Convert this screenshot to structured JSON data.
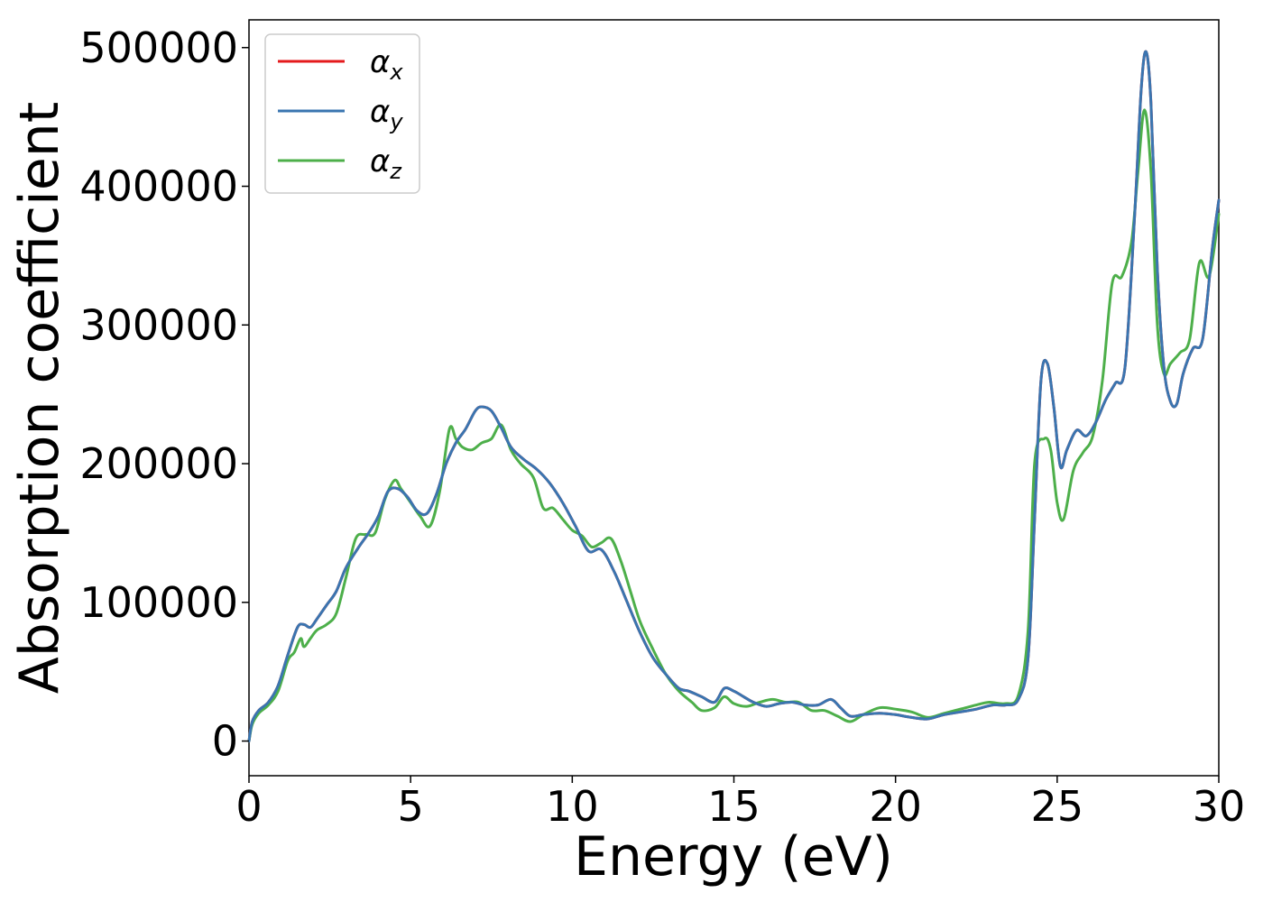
{
  "chart_data": {
    "type": "line",
    "title": "",
    "xlabel": "Energy (eV)",
    "ylabel": "Absorption coefficient",
    "xlim": [
      0,
      30
    ],
    "ylim": [
      -25000,
      520000
    ],
    "xticks": [
      0,
      5,
      10,
      15,
      20,
      25,
      30
    ],
    "yticks": [
      0,
      100000,
      200000,
      300000,
      400000,
      500000
    ],
    "xtick_labels": [
      "0",
      "5",
      "10",
      "15",
      "20",
      "25",
      "30"
    ],
    "ytick_labels": [
      "0",
      "100000",
      "200000",
      "300000",
      "400000",
      "500000"
    ],
    "grid": false,
    "legend_position": "top-left",
    "series": [
      {
        "name": "αx",
        "symbol": "α",
        "subscript": "x",
        "color": "#e41a1c",
        "x": [
          0,
          0.1,
          0.3,
          0.6,
          0.9,
          1.2,
          1.5,
          1.7,
          1.9,
          2.1,
          2.4,
          2.7,
          3.0,
          3.4,
          3.7,
          4.0,
          4.3,
          4.6,
          4.9,
          5.2,
          5.5,
          5.8,
          6.1,
          6.4,
          6.7,
          7.0,
          7.2,
          7.5,
          7.8,
          8.1,
          8.5,
          8.9,
          9.3,
          9.7,
          10.1,
          10.5,
          10.9,
          11.3,
          11.7,
          12.1,
          12.5,
          12.9,
          13.3,
          13.6,
          14.0,
          14.4,
          14.7,
          15.0,
          15.3,
          15.6,
          16.0,
          16.4,
          16.8,
          17.2,
          17.6,
          18.0,
          18.3,
          18.6,
          19.0,
          19.5,
          20.0,
          20.5,
          21.0,
          21.5,
          22.0,
          22.5,
          23.0,
          23.4,
          23.8,
          24.1,
          24.3,
          24.5,
          24.7,
          24.9,
          25.1,
          25.3,
          25.6,
          25.9,
          26.2,
          26.5,
          26.8,
          27.1,
          27.4,
          27.6,
          27.75,
          27.9,
          28.1,
          28.3,
          28.5,
          28.7,
          28.9,
          29.2,
          29.5,
          29.8,
          30.0
        ],
        "values": [
          0,
          14000,
          22000,
          28000,
          40000,
          62000,
          82000,
          84000,
          82000,
          88000,
          98000,
          108000,
          125000,
          140000,
          150000,
          162000,
          180000,
          182000,
          176000,
          166000,
          164000,
          178000,
          200000,
          215000,
          225000,
          238000,
          241000,
          238000,
          226000,
          212000,
          203000,
          196000,
          186000,
          172000,
          155000,
          137000,
          138000,
          122000,
          100000,
          78000,
          60000,
          48000,
          38000,
          36000,
          32000,
          28000,
          38000,
          36000,
          32000,
          28000,
          25000,
          27000,
          28000,
          26000,
          26000,
          30000,
          24000,
          18000,
          19000,
          20000,
          19000,
          17000,
          16000,
          19000,
          21000,
          23000,
          26000,
          26000,
          30000,
          60000,
          160000,
          260000,
          272000,
          240000,
          198000,
          210000,
          224000,
          220000,
          230000,
          246000,
          258000,
          270000,
          380000,
          470000,
          497000,
          460000,
          340000,
          270000,
          245000,
          243000,
          265000,
          283000,
          290000,
          355000,
          390000
        ]
      },
      {
        "name": "αy",
        "symbol": "α",
        "subscript": "y",
        "color": "#3a75b0",
        "x": [
          0,
          0.1,
          0.3,
          0.6,
          0.9,
          1.2,
          1.5,
          1.7,
          1.9,
          2.1,
          2.4,
          2.7,
          3.0,
          3.4,
          3.7,
          4.0,
          4.3,
          4.6,
          4.9,
          5.2,
          5.5,
          5.8,
          6.1,
          6.4,
          6.7,
          7.0,
          7.2,
          7.5,
          7.8,
          8.1,
          8.5,
          8.9,
          9.3,
          9.7,
          10.1,
          10.5,
          10.9,
          11.3,
          11.7,
          12.1,
          12.5,
          12.9,
          13.3,
          13.6,
          14.0,
          14.4,
          14.7,
          15.0,
          15.3,
          15.6,
          16.0,
          16.4,
          16.8,
          17.2,
          17.6,
          18.0,
          18.3,
          18.6,
          19.0,
          19.5,
          20.0,
          20.5,
          21.0,
          21.5,
          22.0,
          22.5,
          23.0,
          23.4,
          23.8,
          24.1,
          24.3,
          24.5,
          24.7,
          24.9,
          25.1,
          25.3,
          25.6,
          25.9,
          26.2,
          26.5,
          26.8,
          27.1,
          27.4,
          27.6,
          27.75,
          27.9,
          28.1,
          28.3,
          28.5,
          28.7,
          28.9,
          29.2,
          29.5,
          29.8,
          30.0
        ],
        "values": [
          0,
          14000,
          22000,
          28000,
          40000,
          62000,
          82000,
          84000,
          82000,
          88000,
          98000,
          108000,
          125000,
          140000,
          150000,
          162000,
          180000,
          182000,
          176000,
          166000,
          164000,
          178000,
          200000,
          215000,
          225000,
          238000,
          241000,
          238000,
          226000,
          212000,
          203000,
          196000,
          186000,
          172000,
          155000,
          137000,
          138000,
          122000,
          100000,
          78000,
          60000,
          48000,
          38000,
          36000,
          32000,
          28000,
          38000,
          36000,
          32000,
          28000,
          25000,
          27000,
          28000,
          26000,
          26000,
          30000,
          24000,
          18000,
          19000,
          20000,
          19000,
          17000,
          16000,
          19000,
          21000,
          23000,
          26000,
          26000,
          30000,
          60000,
          160000,
          260000,
          272000,
          240000,
          198000,
          210000,
          224000,
          220000,
          230000,
          246000,
          258000,
          270000,
          380000,
          470000,
          497000,
          460000,
          340000,
          270000,
          245000,
          243000,
          265000,
          283000,
          290000,
          355000,
          390000
        ]
      },
      {
        "name": "αz",
        "symbol": "α",
        "subscript": "z",
        "color": "#4daf4a",
        "x": [
          0,
          0.1,
          0.3,
          0.6,
          0.9,
          1.2,
          1.4,
          1.6,
          1.7,
          1.9,
          2.1,
          2.4,
          2.7,
          3.0,
          3.3,
          3.6,
          3.9,
          4.2,
          4.5,
          4.7,
          5.0,
          5.3,
          5.6,
          5.9,
          6.2,
          6.4,
          6.6,
          6.9,
          7.2,
          7.5,
          7.8,
          8.1,
          8.4,
          8.8,
          9.1,
          9.4,
          9.7,
          10.0,
          10.3,
          10.6,
          10.9,
          11.2,
          11.5,
          11.8,
          12.1,
          12.5,
          12.9,
          13.3,
          13.7,
          14.0,
          14.4,
          14.7,
          15.0,
          15.4,
          15.8,
          16.2,
          16.6,
          17.0,
          17.4,
          17.8,
          18.2,
          18.6,
          19.0,
          19.5,
          20.0,
          20.5,
          21.0,
          21.5,
          22.0,
          22.5,
          22.9,
          23.4,
          23.8,
          24.1,
          24.3,
          24.6,
          24.8,
          25.0,
          25.2,
          25.5,
          25.8,
          26.1,
          26.4,
          26.7,
          27.0,
          27.3,
          27.5,
          27.7,
          27.9,
          28.1,
          28.3,
          28.5,
          28.8,
          29.1,
          29.4,
          29.7,
          30.0
        ],
        "values": [
          0,
          12000,
          20000,
          26000,
          36000,
          58000,
          64000,
          74000,
          68000,
          74000,
          80000,
          84000,
          92000,
          118000,
          146000,
          149000,
          150000,
          174000,
          188000,
          182000,
          172000,
          162000,
          155000,
          180000,
          225000,
          218000,
          212000,
          210000,
          215000,
          218000,
          228000,
          210000,
          200000,
          190000,
          168000,
          168000,
          160000,
          152000,
          148000,
          140000,
          143000,
          146000,
          130000,
          108000,
          86000,
          66000,
          48000,
          36000,
          28000,
          22000,
          24000,
          32000,
          27000,
          25000,
          28000,
          30000,
          28000,
          28000,
          22000,
          22000,
          18000,
          14000,
          19000,
          24000,
          23000,
          21000,
          17000,
          20000,
          23000,
          26000,
          28000,
          27000,
          33000,
          80000,
          200000,
          218000,
          210000,
          172000,
          160000,
          195000,
          208000,
          220000,
          260000,
          330000,
          335000,
          360000,
          410000,
          455000,
          410000,
          300000,
          265000,
          272000,
          280000,
          290000,
          345000,
          335000,
          380000
        ]
      }
    ]
  }
}
